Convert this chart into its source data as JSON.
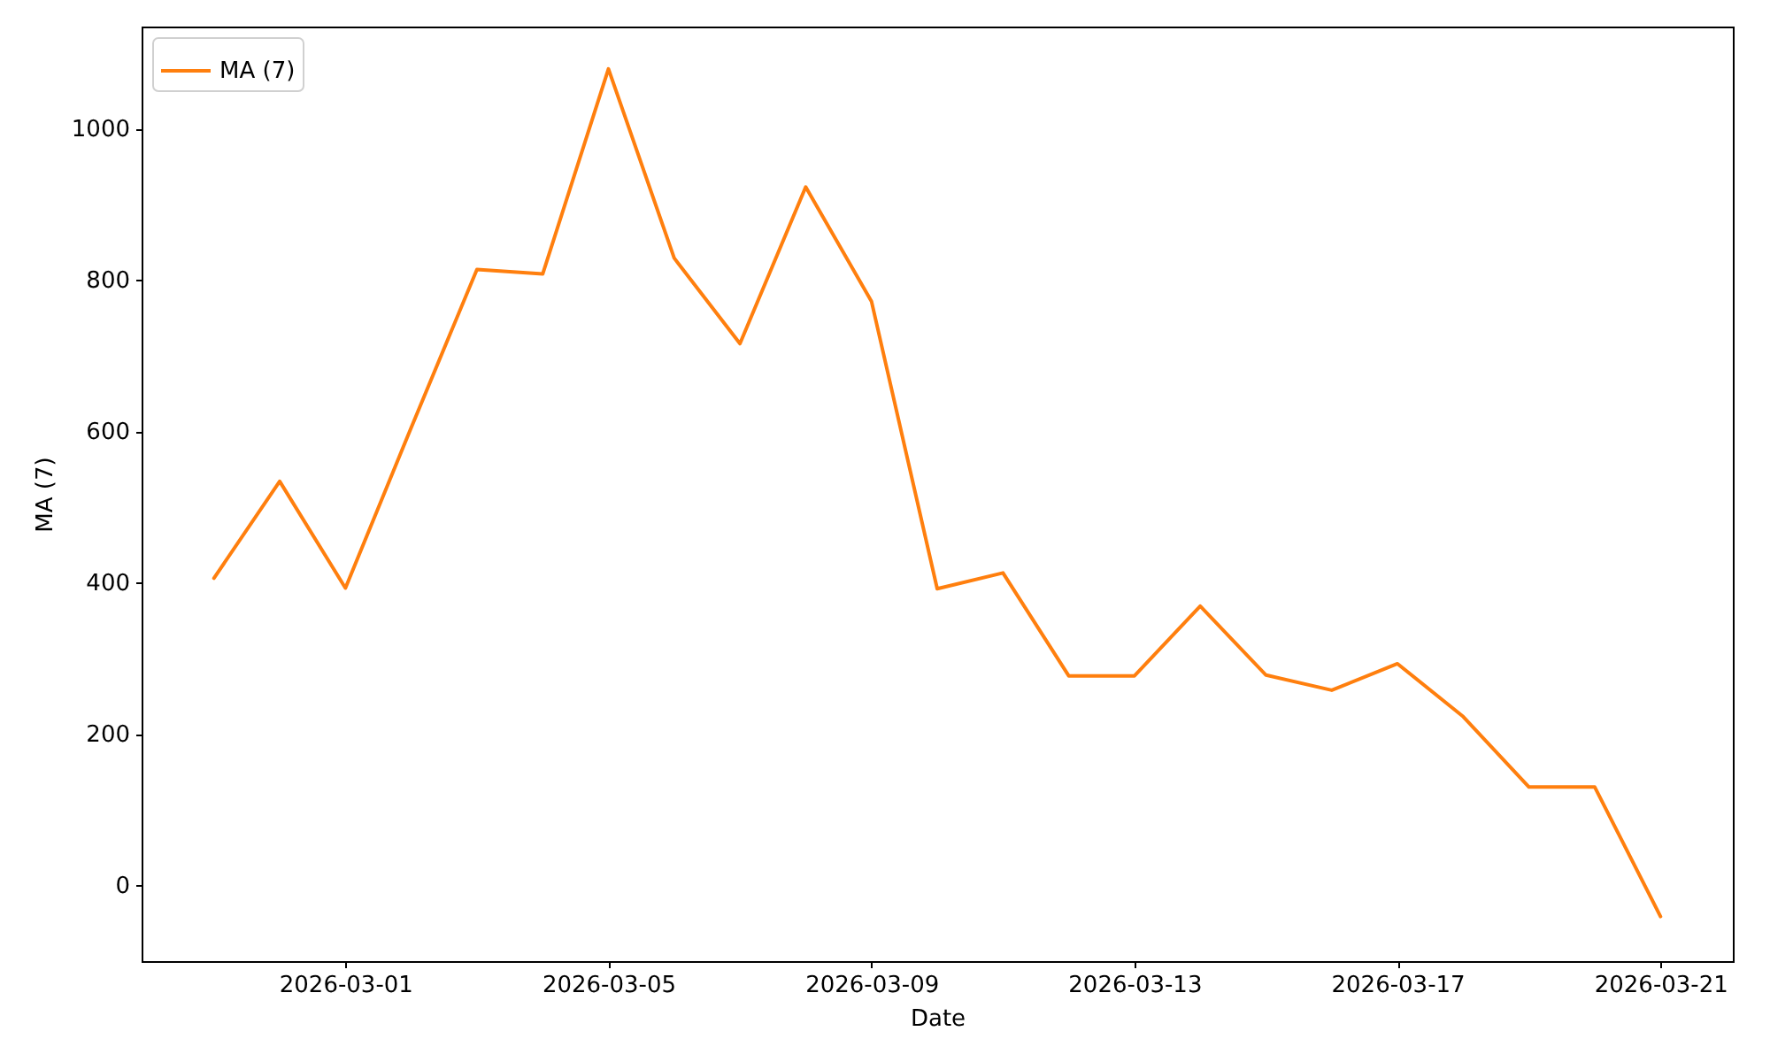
{
  "chart_data": {
    "type": "line",
    "xlabel": "Date",
    "ylabel": "MA (7)",
    "x": [
      "2026-02-27",
      "2026-02-28",
      "2026-03-01",
      "2026-03-02",
      "2026-03-03",
      "2026-03-04",
      "2026-03-05",
      "2026-03-06",
      "2026-03-07",
      "2026-03-08",
      "2026-03-09",
      "2026-03-10",
      "2026-03-11",
      "2026-03-12",
      "2026-03-13",
      "2026-03-14",
      "2026-03-15",
      "2026-03-16",
      "2026-03-17",
      "2026-03-18",
      "2026-03-19",
      "2026-03-20",
      "2026-03-21"
    ],
    "series": [
      {
        "name": "MA (7)",
        "color": "#ff7f0e",
        "values": [
          406,
          534,
          393,
          605,
          814,
          808,
          1079,
          829,
          716,
          923,
          772,
          392,
          413,
          277,
          277,
          369,
          278,
          258,
          293,
          223,
          130,
          130,
          -41
        ]
      }
    ],
    "xlim": [
      "2026-02-25T21:36",
      "2026-03-22T02:24"
    ],
    "xticks": [
      "2026-03-01",
      "2026-03-05",
      "2026-03-09",
      "2026-03-13",
      "2026-03-17",
      "2026-03-21"
    ],
    "ylim": [
      -100,
      1135
    ],
    "yticks": [
      0,
      200,
      400,
      600,
      800,
      1000
    ],
    "grid": false,
    "legend": "top left",
    "marker": "none",
    "line_style": "solid"
  }
}
